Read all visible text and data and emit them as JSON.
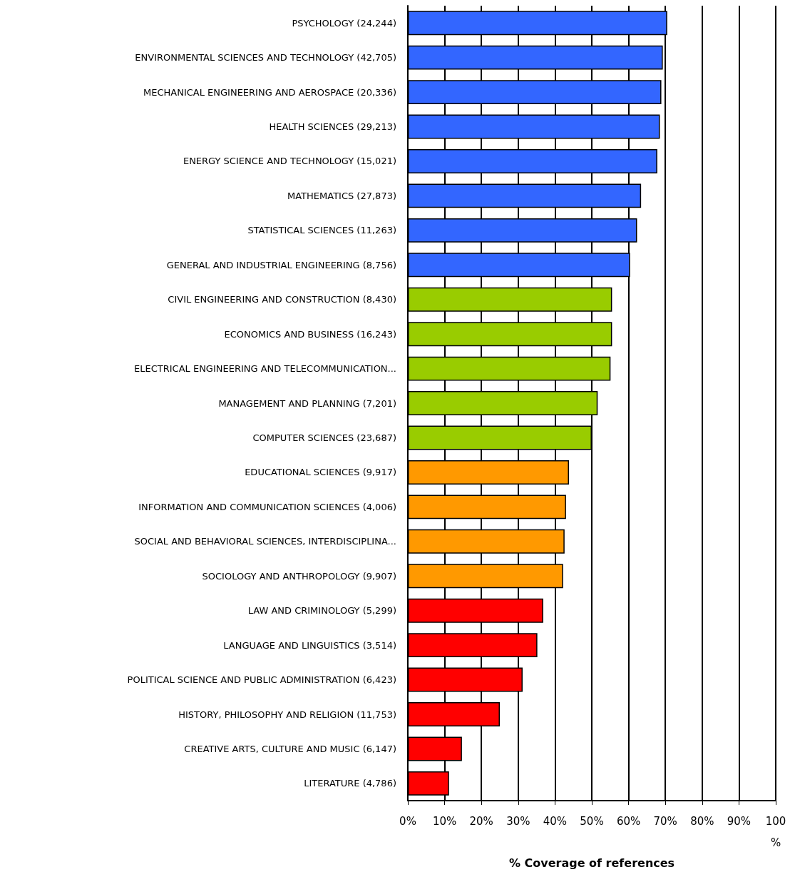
{
  "chart_data": {
    "type": "bar",
    "orientation": "horizontal",
    "xlabel": "% Coverage of references",
    "categories": [
      "PSYCHOLOGY (24,244)",
      "ENVIRONMENTAL SCIENCES AND TECHNOLOGY (42,705)",
      "MECHANICAL ENGINEERING AND AEROSPACE (20,336)",
      "HEALTH SCIENCES (29,213)",
      "ENERGY SCIENCE AND TECHNOLOGY (15,021)",
      "MATHEMATICS (27,873)",
      "STATISTICAL SCIENCES (11,263)",
      "GENERAL AND INDUSTRIAL ENGINEERING (8,756)",
      "CIVIL ENGINEERING AND CONSTRUCTION (8,430)",
      "ECONOMICS AND BUSINESS (16,243)",
      "ELECTRICAL ENGINEERING AND TELECOMMUNICATION...",
      "MANAGEMENT AND PLANNING (7,201)",
      "COMPUTER SCIENCES (23,687)",
      "EDUCATIONAL SCIENCES (9,917)",
      "INFORMATION AND COMMUNICATION SCIENCES (4,006)",
      "SOCIAL AND BEHAVIORAL SCIENCES, INTERDISCIPLINA...",
      "SOCIOLOGY AND ANTHROPOLOGY (9,907)",
      "LAW AND CRIMINOLOGY (5,299)",
      "LANGUAGE AND LINGUISTICS (3,514)",
      "POLITICAL SCIENCE AND PUBLIC ADMINISTRATION (6,423)",
      "HISTORY, PHILOSOPHY AND RELIGION (11,753)",
      "CREATIVE ARTS, CULTURE AND MUSIC (6,147)",
      "LITERATURE (4,786)"
    ],
    "values": [
      70.5,
      69.3,
      68.9,
      68.5,
      67.8,
      63.4,
      62.3,
      60.4,
      55.5,
      55.5,
      55.1,
      51.6,
      50.0,
      43.8,
      43.0,
      42.6,
      42.2,
      36.8,
      35.2,
      31.2,
      25.0,
      14.7,
      11.2
    ],
    "colors": [
      "#3366ff",
      "#3366ff",
      "#3366ff",
      "#3366ff",
      "#3366ff",
      "#3366ff",
      "#3366ff",
      "#3366ff",
      "#99cc00",
      "#99cc00",
      "#99cc00",
      "#99cc00",
      "#99cc00",
      "#ff9900",
      "#ff9900",
      "#ff9900",
      "#ff9900",
      "#ff0000",
      "#ff0000",
      "#ff0000",
      "#ff0000",
      "#ff0000",
      "#ff0000"
    ],
    "xlim": [
      0,
      100
    ],
    "xticks": [
      {
        "value": 0,
        "label": "0%"
      },
      {
        "value": 10,
        "label": "10%"
      },
      {
        "value": 20,
        "label": "20%"
      },
      {
        "value": 30,
        "label": "30%"
      },
      {
        "value": 40,
        "label": "40%"
      },
      {
        "value": 50,
        "label": "50%"
      },
      {
        "value": 60,
        "label": "60%"
      },
      {
        "value": 70,
        "label": "70%"
      },
      {
        "value": 80,
        "label": "80%"
      },
      {
        "value": 90,
        "label": "90%"
      },
      {
        "value": 100,
        "label": "100\n%"
      }
    ],
    "grid": "x"
  }
}
